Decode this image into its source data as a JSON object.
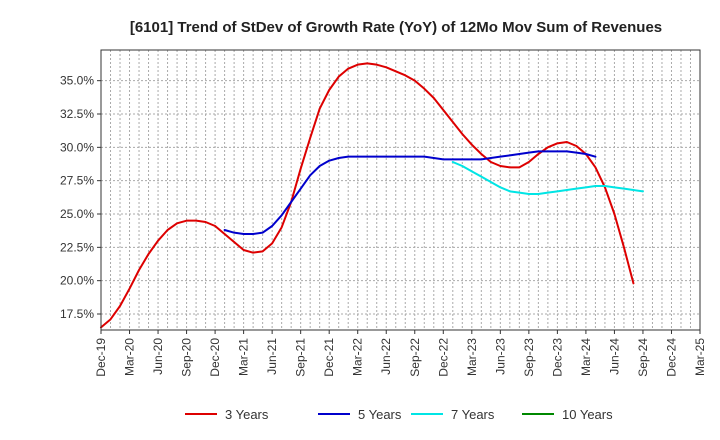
{
  "chart_data": {
    "type": "line",
    "title": "[6101]  Trend of StDev of Growth Rate (YoY) of 12Mo Mov Sum of Revenues",
    "xlabel": "",
    "ylabel": "",
    "ylim": [
      16.3,
      37.3
    ],
    "xlim": [
      "Dec-19",
      "Mar-25"
    ],
    "grid": true,
    "legend_position": "bottom",
    "x_tick_labels": [
      "Dec-19",
      "Mar-20",
      "Jun-20",
      "Sep-20",
      "Dec-20",
      "Mar-21",
      "Jun-21",
      "Sep-21",
      "Dec-21",
      "Mar-22",
      "Jun-22",
      "Sep-22",
      "Dec-22",
      "Mar-23",
      "Jun-23",
      "Sep-23",
      "Dec-23",
      "Mar-24",
      "Jun-24",
      "Sep-24",
      "Dec-24",
      "Mar-25"
    ],
    "y_ticks": [
      17.5,
      20.0,
      22.5,
      25.0,
      27.5,
      30.0,
      32.5,
      35.0
    ],
    "y_tick_labels": [
      "17.5%",
      "20.0%",
      "22.5%",
      "25.0%",
      "27.5%",
      "30.0%",
      "32.5%",
      "35.0%"
    ],
    "series": [
      {
        "name": "3 Years",
        "color": "#dd0000",
        "start_index": 0,
        "values": [
          16.5,
          17.1,
          18.1,
          19.4,
          20.8,
          22.0,
          23.0,
          23.8,
          24.3,
          24.5,
          24.5,
          24.4,
          24.1,
          23.5,
          22.9,
          22.3,
          22.1,
          22.2,
          22.8,
          24.0,
          25.9,
          28.4,
          30.7,
          32.9,
          34.3,
          35.3,
          35.9,
          36.2,
          36.3,
          36.2,
          36.0,
          35.7,
          35.4,
          35.0,
          34.4,
          33.7,
          32.8,
          31.9,
          31.0,
          30.2,
          29.5,
          28.9,
          28.6,
          28.5,
          28.5,
          28.9,
          29.5,
          30.0,
          30.3,
          30.4,
          30.1,
          29.5,
          28.5,
          27.0,
          25.0,
          22.5,
          19.8
        ]
      },
      {
        "name": "5 Years",
        "color": "#0000cc",
        "start_index": 13,
        "values": [
          23.8,
          23.6,
          23.5,
          23.5,
          23.6,
          24.1,
          24.9,
          25.9,
          26.9,
          27.9,
          28.6,
          29.0,
          29.2,
          29.3,
          29.3,
          29.3,
          29.3,
          29.3,
          29.3,
          29.3,
          29.3,
          29.3,
          29.2,
          29.1,
          29.1,
          29.1,
          29.1,
          29.1,
          29.2,
          29.3,
          29.4,
          29.5,
          29.6,
          29.7,
          29.7,
          29.7,
          29.7,
          29.6,
          29.5,
          29.3
        ]
      },
      {
        "name": "7 Years",
        "color": "#00e5e5",
        "start_index": 37,
        "values": [
          28.9,
          28.6,
          28.2,
          27.8,
          27.4,
          27.0,
          26.7,
          26.6,
          26.5,
          26.5,
          26.6,
          26.7,
          26.8,
          26.9,
          27.0,
          27.1,
          27.1,
          27.0,
          26.9,
          26.8,
          26.7
        ]
      },
      {
        "name": "10 Years",
        "color": "#008800",
        "start_index": 0,
        "values": []
      }
    ]
  }
}
